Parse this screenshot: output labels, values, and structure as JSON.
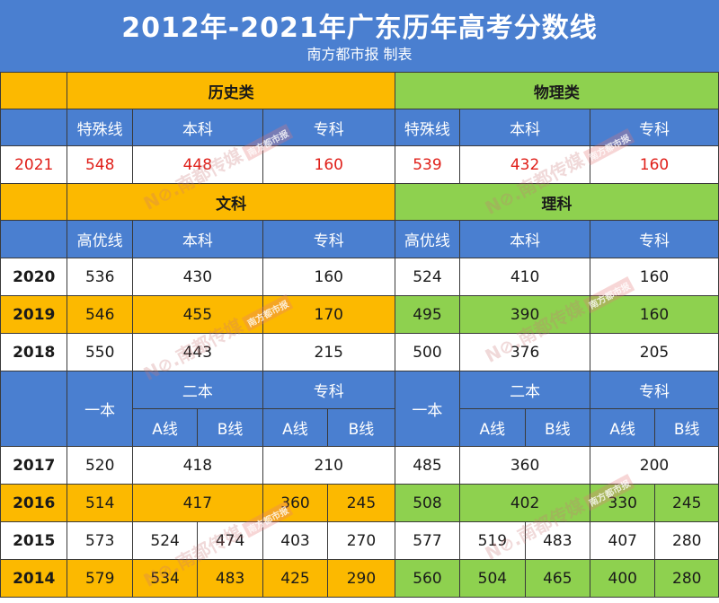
{
  "title": "2012年-2021年广东历年高考分数线",
  "subtitle": "南方都市报 制表",
  "s1": {
    "left": "历史类",
    "right": "物理类"
  },
  "h1": [
    "特殊线",
    "本科",
    "专科",
    "特殊线",
    "本科",
    "专科"
  ],
  "row2021": {
    "year": "2021",
    "v": [
      "548",
      "448",
      "160",
      "539",
      "432",
      "160"
    ]
  },
  "s2": {
    "left": "文科",
    "right": "理科"
  },
  "h2": [
    "高优线",
    "本科",
    "专科",
    "高优线",
    "本科",
    "专科"
  ],
  "rows2": [
    {
      "year": "2020",
      "v": [
        "536",
        "430",
        "160",
        "524",
        "410",
        "160"
      ]
    },
    {
      "year": "2019",
      "v": [
        "546",
        "455",
        "170",
        "495",
        "390",
        "160"
      ]
    },
    {
      "year": "2018",
      "v": [
        "550",
        "443",
        "215",
        "500",
        "376",
        "205"
      ]
    }
  ],
  "h3": {
    "yiben": "一本",
    "erben": "二本",
    "zhuanke": "专科",
    "a": "A线",
    "b": "B线"
  },
  "row2017": {
    "year": "2017",
    "v": [
      "520",
      "418",
      "210",
      "485",
      "360",
      "200"
    ]
  },
  "row2016": {
    "year": "2016",
    "v": [
      "514",
      "417",
      "360",
      "245",
      "508",
      "402",
      "330",
      "245"
    ]
  },
  "rows3": [
    {
      "year": "2015",
      "v": [
        "573",
        "524",
        "474",
        "403",
        "270",
        "577",
        "519",
        "483",
        "407",
        "280"
      ]
    },
    {
      "year": "2014",
      "v": [
        "579",
        "534",
        "483",
        "425",
        "290",
        "560",
        "504",
        "465",
        "400",
        "280"
      ]
    }
  ],
  "watermark": {
    "text": "N⊘.南都传媒",
    "tag": "南方都市报"
  }
}
